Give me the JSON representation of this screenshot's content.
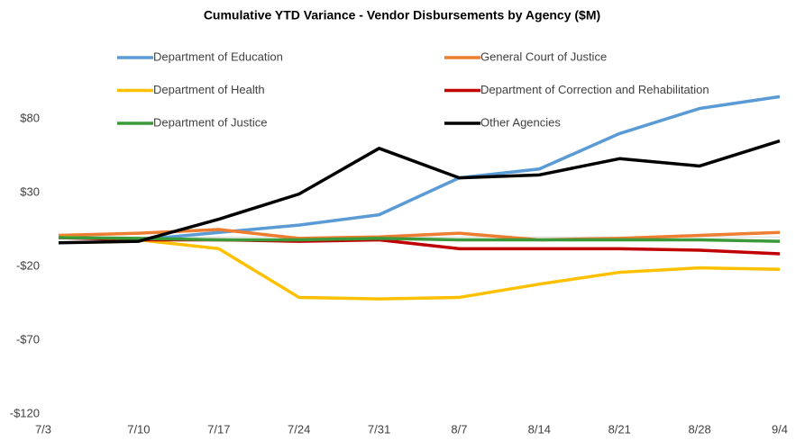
{
  "chart_data": {
    "type": "line",
    "title": "Cumulative YTD Variance - Vendor Disbursements by Agency ($M)",
    "categories": [
      "7/3",
      "7/10",
      "7/17",
      "7/24",
      "7/31",
      "8/7",
      "8/14",
      "8/21",
      "8/28",
      "9/4"
    ],
    "series": [
      {
        "name": "Department of Education",
        "color": "#5b9bd5",
        "values": [
          0,
          -2,
          3,
          8,
          15,
          40,
          46,
          70,
          87,
          95
        ]
      },
      {
        "name": "General Court of Justice",
        "color": "#ed7d31",
        "values": [
          1,
          2.5,
          5,
          -1,
          0,
          2.5,
          -2,
          -1,
          1,
          3
        ]
      },
      {
        "name": "Department of Health",
        "color": "#ffc000",
        "values": [
          0,
          -2,
          -8,
          -41,
          -42,
          -41,
          -32,
          -24,
          -21,
          -22
        ]
      },
      {
        "name": "Department of Correction and Rehabilitation",
        "color": "#c00000",
        "values": [
          -0.5,
          -2,
          -2,
          -3,
          -2,
          -8,
          -8,
          -8,
          -9,
          -11.5
        ]
      },
      {
        "name": "Department of Justice",
        "color": "#3a9a3a",
        "values": [
          -0.5,
          -1,
          -2,
          -2,
          -1,
          -2,
          -2,
          -2,
          -2,
          -3
        ]
      },
      {
        "name": "Other Agencies",
        "color": "#000000",
        "values": [
          -4,
          -3,
          12,
          29,
          60,
          40,
          42,
          53,
          48,
          65
        ]
      }
    ],
    "ylim": [
      -120,
      120
    ],
    "yticks": [
      {
        "value": -120,
        "label": "-$120"
      },
      {
        "value": -70,
        "label": "-$70"
      },
      {
        "value": -20,
        "label": "-$20"
      },
      {
        "value": 30,
        "label": "$30"
      },
      {
        "value": 80,
        "label": "$80"
      }
    ],
    "grid": false
  }
}
